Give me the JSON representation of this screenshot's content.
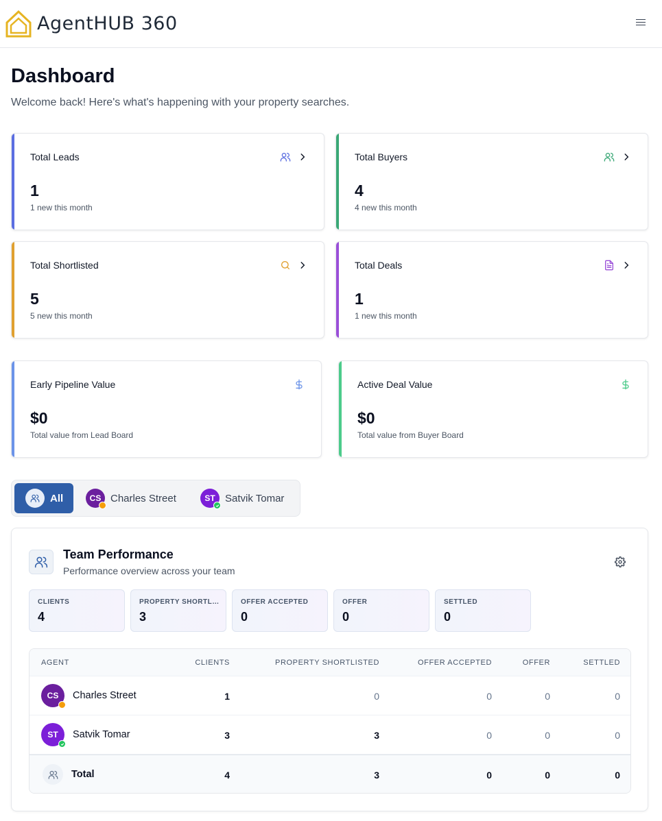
{
  "app": {
    "name": "AgentHUB 360",
    "logo_color": "#e6b422"
  },
  "page": {
    "title": "Dashboard",
    "subtitle": "Welcome back! Here's what's happening with your property searches."
  },
  "stats": [
    {
      "label": "Total Leads",
      "value": "1",
      "note": "1 new this month",
      "accent": "#5b6ee1",
      "icon": "users-icon"
    },
    {
      "label": "Total Buyers",
      "value": "4",
      "note": "4 new this month",
      "accent": "#3aa876",
      "icon": "users-icon"
    },
    {
      "label": "Total Shortlisted",
      "value": "5",
      "note": "5 new this month",
      "accent": "#e0a030",
      "icon": "search-icon"
    },
    {
      "label": "Total Deals",
      "value": "1",
      "note": "1 new this month",
      "accent": "#9a4fd8",
      "icon": "document-icon"
    }
  ],
  "values": [
    {
      "label": "Early Pipeline Value",
      "value": "$0",
      "note": "Total value from Lead Board",
      "accent": "#6b93e8",
      "icon": "dollar-icon"
    },
    {
      "label": "Active Deal Value",
      "value": "$0",
      "note": "Total value from Buyer Board",
      "accent": "#4ccb8a",
      "icon": "dollar-icon"
    }
  ],
  "filter": {
    "all_label": "All",
    "agents": [
      {
        "initials": "CS",
        "name": "Charles Street",
        "avatar_color": "#6b1f9e",
        "status_color": "#f59e0b"
      },
      {
        "initials": "ST",
        "name": "Satvik Tomar",
        "avatar_color": "#7c1fd8",
        "status_color": "#22c55e"
      }
    ]
  },
  "team": {
    "title": "Team Performance",
    "subtitle": "Performance overview across your team",
    "metrics": [
      {
        "label": "CLIENTS",
        "value": "4"
      },
      {
        "label": "PROPERTY SHORTLISTED",
        "value": "3"
      },
      {
        "label": "OFFER ACCEPTED",
        "value": "0"
      },
      {
        "label": "OFFER",
        "value": "0"
      },
      {
        "label": "SETTLED",
        "value": "0"
      }
    ],
    "table": {
      "headers": [
        "AGENT",
        "CLIENTS",
        "PROPERTY SHORTLISTED",
        "OFFER ACCEPTED",
        "OFFER",
        "SETTLED"
      ],
      "rows": [
        {
          "initials": "CS",
          "name": "Charles Street",
          "clients": "1",
          "shortlisted": "0",
          "accepted": "0",
          "offer": "0",
          "settled": "0"
        },
        {
          "initials": "ST",
          "name": "Satvik Tomar",
          "clients": "3",
          "shortlisted": "3",
          "accepted": "0",
          "offer": "0",
          "settled": "0"
        }
      ],
      "total": {
        "name": "Total",
        "clients": "4",
        "shortlisted": "3",
        "accepted": "0",
        "offer": "0",
        "settled": "0"
      }
    }
  }
}
